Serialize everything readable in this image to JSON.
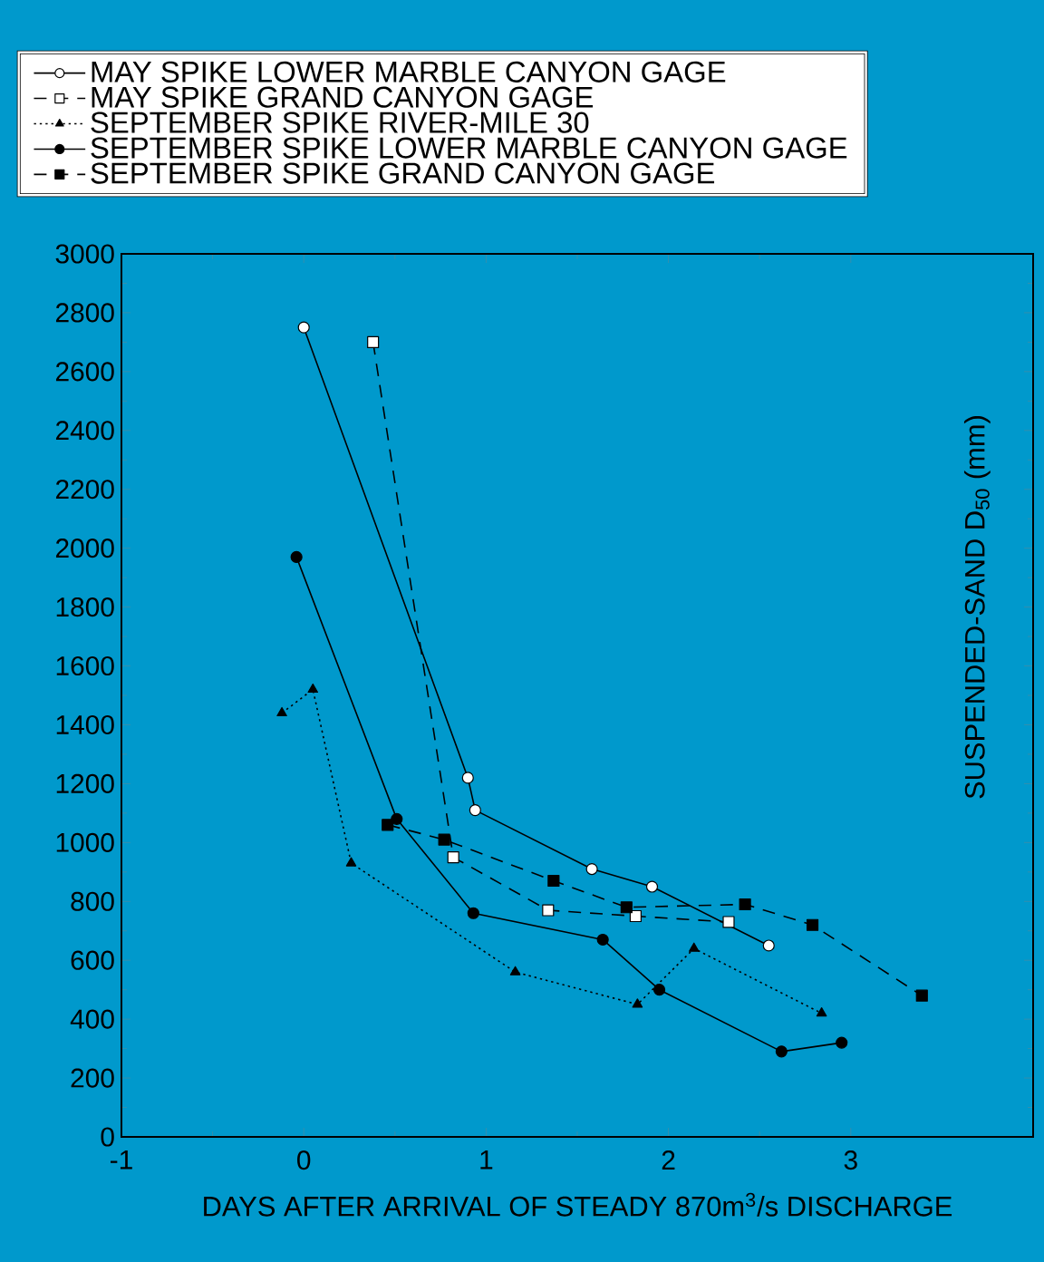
{
  "chart_data": {
    "type": "line",
    "xlabel": "DAYS AFTER ARRIVAL OF STEADY 870m$^{3}$/s DISCHARGE",
    "ylabel": "SUSPENDED-SAND D$_{50}$ (mm)",
    "xlim": [
      -1,
      4
    ],
    "xticks": [
      -1,
      0,
      1,
      2,
      3
    ],
    "ylim": [
      0,
      3000
    ],
    "yticks": [
      0,
      200,
      400,
      600,
      800,
      1000,
      1200,
      1400,
      1600,
      1800,
      2000,
      2200,
      2400,
      2600,
      2800,
      3000
    ],
    "grid": false,
    "legend": "top",
    "series": [
      {
        "name": "MAY SPIKE LOWER MARBLE CANYON GAGE",
        "color": "#ffffff",
        "marker": "circle",
        "line_style": "solid",
        "x": [
          0.0,
          0.9,
          0.94,
          1.58,
          1.91,
          2.55
        ],
        "values": [
          2750,
          1220,
          1110,
          910,
          850,
          650
        ]
      },
      {
        "name": "MAY SPIKE GRAND CANYON GAGE",
        "color": "#ffffff",
        "marker": "square",
        "line_style": "dashed",
        "x": [
          0.38,
          0.82,
          1.34,
          1.82,
          2.33
        ],
        "values": [
          2700,
          950,
          770,
          750,
          730
        ]
      },
      {
        "name": "SEPTEMBER SPIKE RIVER-MILE 30",
        "color": "#000000",
        "marker": "triangle",
        "line_style": "dotted",
        "x": [
          -0.12,
          0.05,
          0.26,
          1.16,
          1.83,
          2.14,
          2.84
        ],
        "values": [
          1440,
          1520,
          930,
          560,
          450,
          640,
          420
        ]
      },
      {
        "name": "SEPTEMBER SPIKE LOWER MARBLE CANYON GAGE",
        "color": "#000000",
        "marker": "circle",
        "line_style": "solid",
        "x": [
          -0.04,
          0.51,
          0.93,
          1.64,
          1.95,
          2.62,
          2.95
        ],
        "values": [
          1970,
          1080,
          760,
          670,
          500,
          290,
          320
        ]
      },
      {
        "name": "SEPTEMBER SPIKE GRAND CANYON GAGE",
        "color": "#000000",
        "marker": "square",
        "line_style": "dashed",
        "x": [
          0.46,
          0.77,
          1.37,
          1.77,
          2.42,
          2.79,
          3.39
        ],
        "values": [
          1060,
          1010,
          870,
          780,
          790,
          720,
          480
        ]
      }
    ]
  }
}
